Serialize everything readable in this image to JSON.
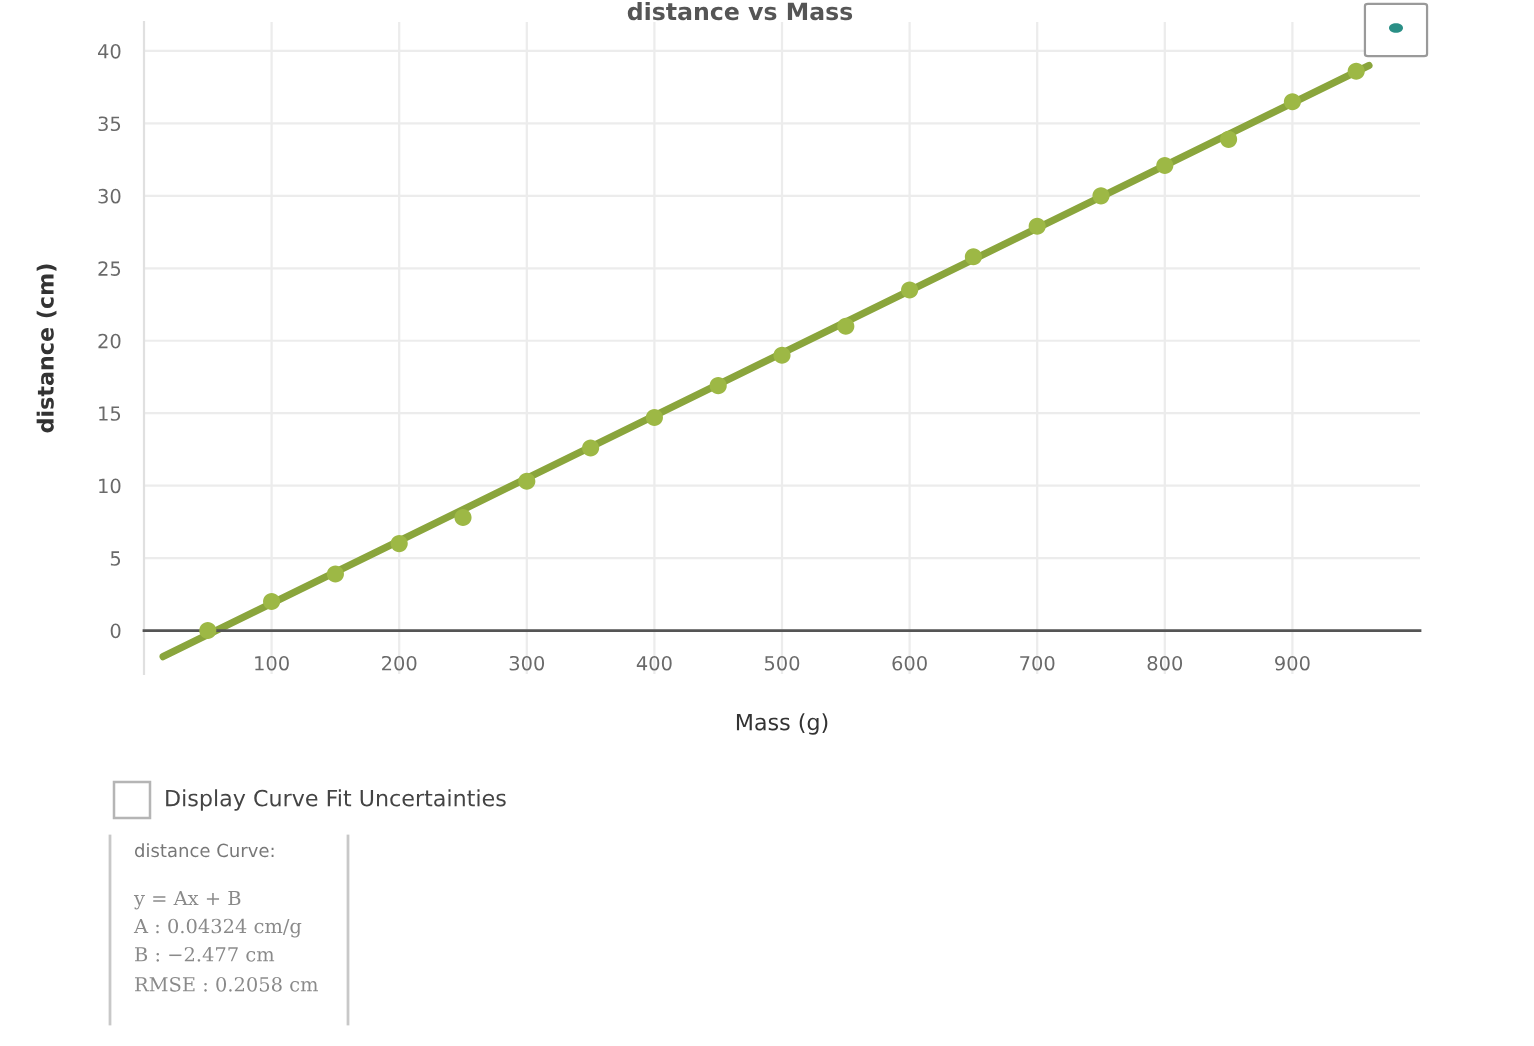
{
  "chart_data": {
    "type": "scatter",
    "title": "distance vs Mass",
    "xlabel": "Mass (g)",
    "ylabel": "distance (cm)",
    "x": [
      50,
      100,
      150,
      200,
      250,
      300,
      350,
      400,
      450,
      500,
      550,
      600,
      650,
      700,
      750,
      800,
      850,
      900,
      950
    ],
    "series": [
      {
        "color": "#9db845",
        "values": [
          0,
          2.0,
          3.9,
          6.0,
          7.8,
          10.3,
          12.6,
          14.7,
          16.9,
          19.0,
          21.0,
          23.5,
          25.8,
          27.9,
          30.0,
          32.1,
          33.9,
          36.5,
          38.6
        ]
      },
      {
        "type": "line",
        "color": "#8aa53c",
        "x": [
          15,
          960
        ],
        "values": [
          -1.8,
          39.0
        ],
        "marker": "none",
        "line_style": "solid"
      }
    ],
    "xlim": [
      0,
      1000
    ],
    "ylim": [
      -3,
      42
    ],
    "xticks": [
      100,
      200,
      300,
      400,
      500,
      600,
      700,
      800,
      900
    ],
    "yticks": [
      0,
      5,
      10,
      15,
      20,
      25,
      30,
      35,
      40
    ],
    "grid": true,
    "marker": "circle",
    "annotations": [
      "Display Curve Fit Uncertainties",
      "distance Curve:",
      "y = Ax + B",
      "A : 0.04324 cm/g",
      "B : −2.477 cm",
      "RMSE : 0.2058 cm"
    ]
  }
}
